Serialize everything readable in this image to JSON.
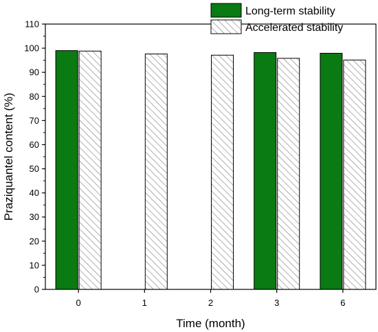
{
  "chart_data": {
    "type": "bar",
    "xlabel": "Time (month)",
    "ylabel": "Praziquantel content (%)",
    "ylim": [
      0,
      110
    ],
    "yticks": [
      0,
      10,
      20,
      30,
      40,
      50,
      60,
      70,
      80,
      90,
      100,
      110
    ],
    "categories": [
      "0",
      "1",
      "2",
      "3",
      "6"
    ],
    "legend_position": "top-right",
    "grid": false,
    "series": [
      {
        "name": "Long-term stability",
        "pattern": "solid",
        "color": "#0a7a12",
        "values": [
          99.0,
          null,
          null,
          98.2,
          97.9
        ]
      },
      {
        "name": "Accelerated stability",
        "pattern": "hatched",
        "color": "#ffffff",
        "values": [
          98.8,
          97.6,
          97.1,
          95.8,
          95.1
        ]
      }
    ]
  }
}
